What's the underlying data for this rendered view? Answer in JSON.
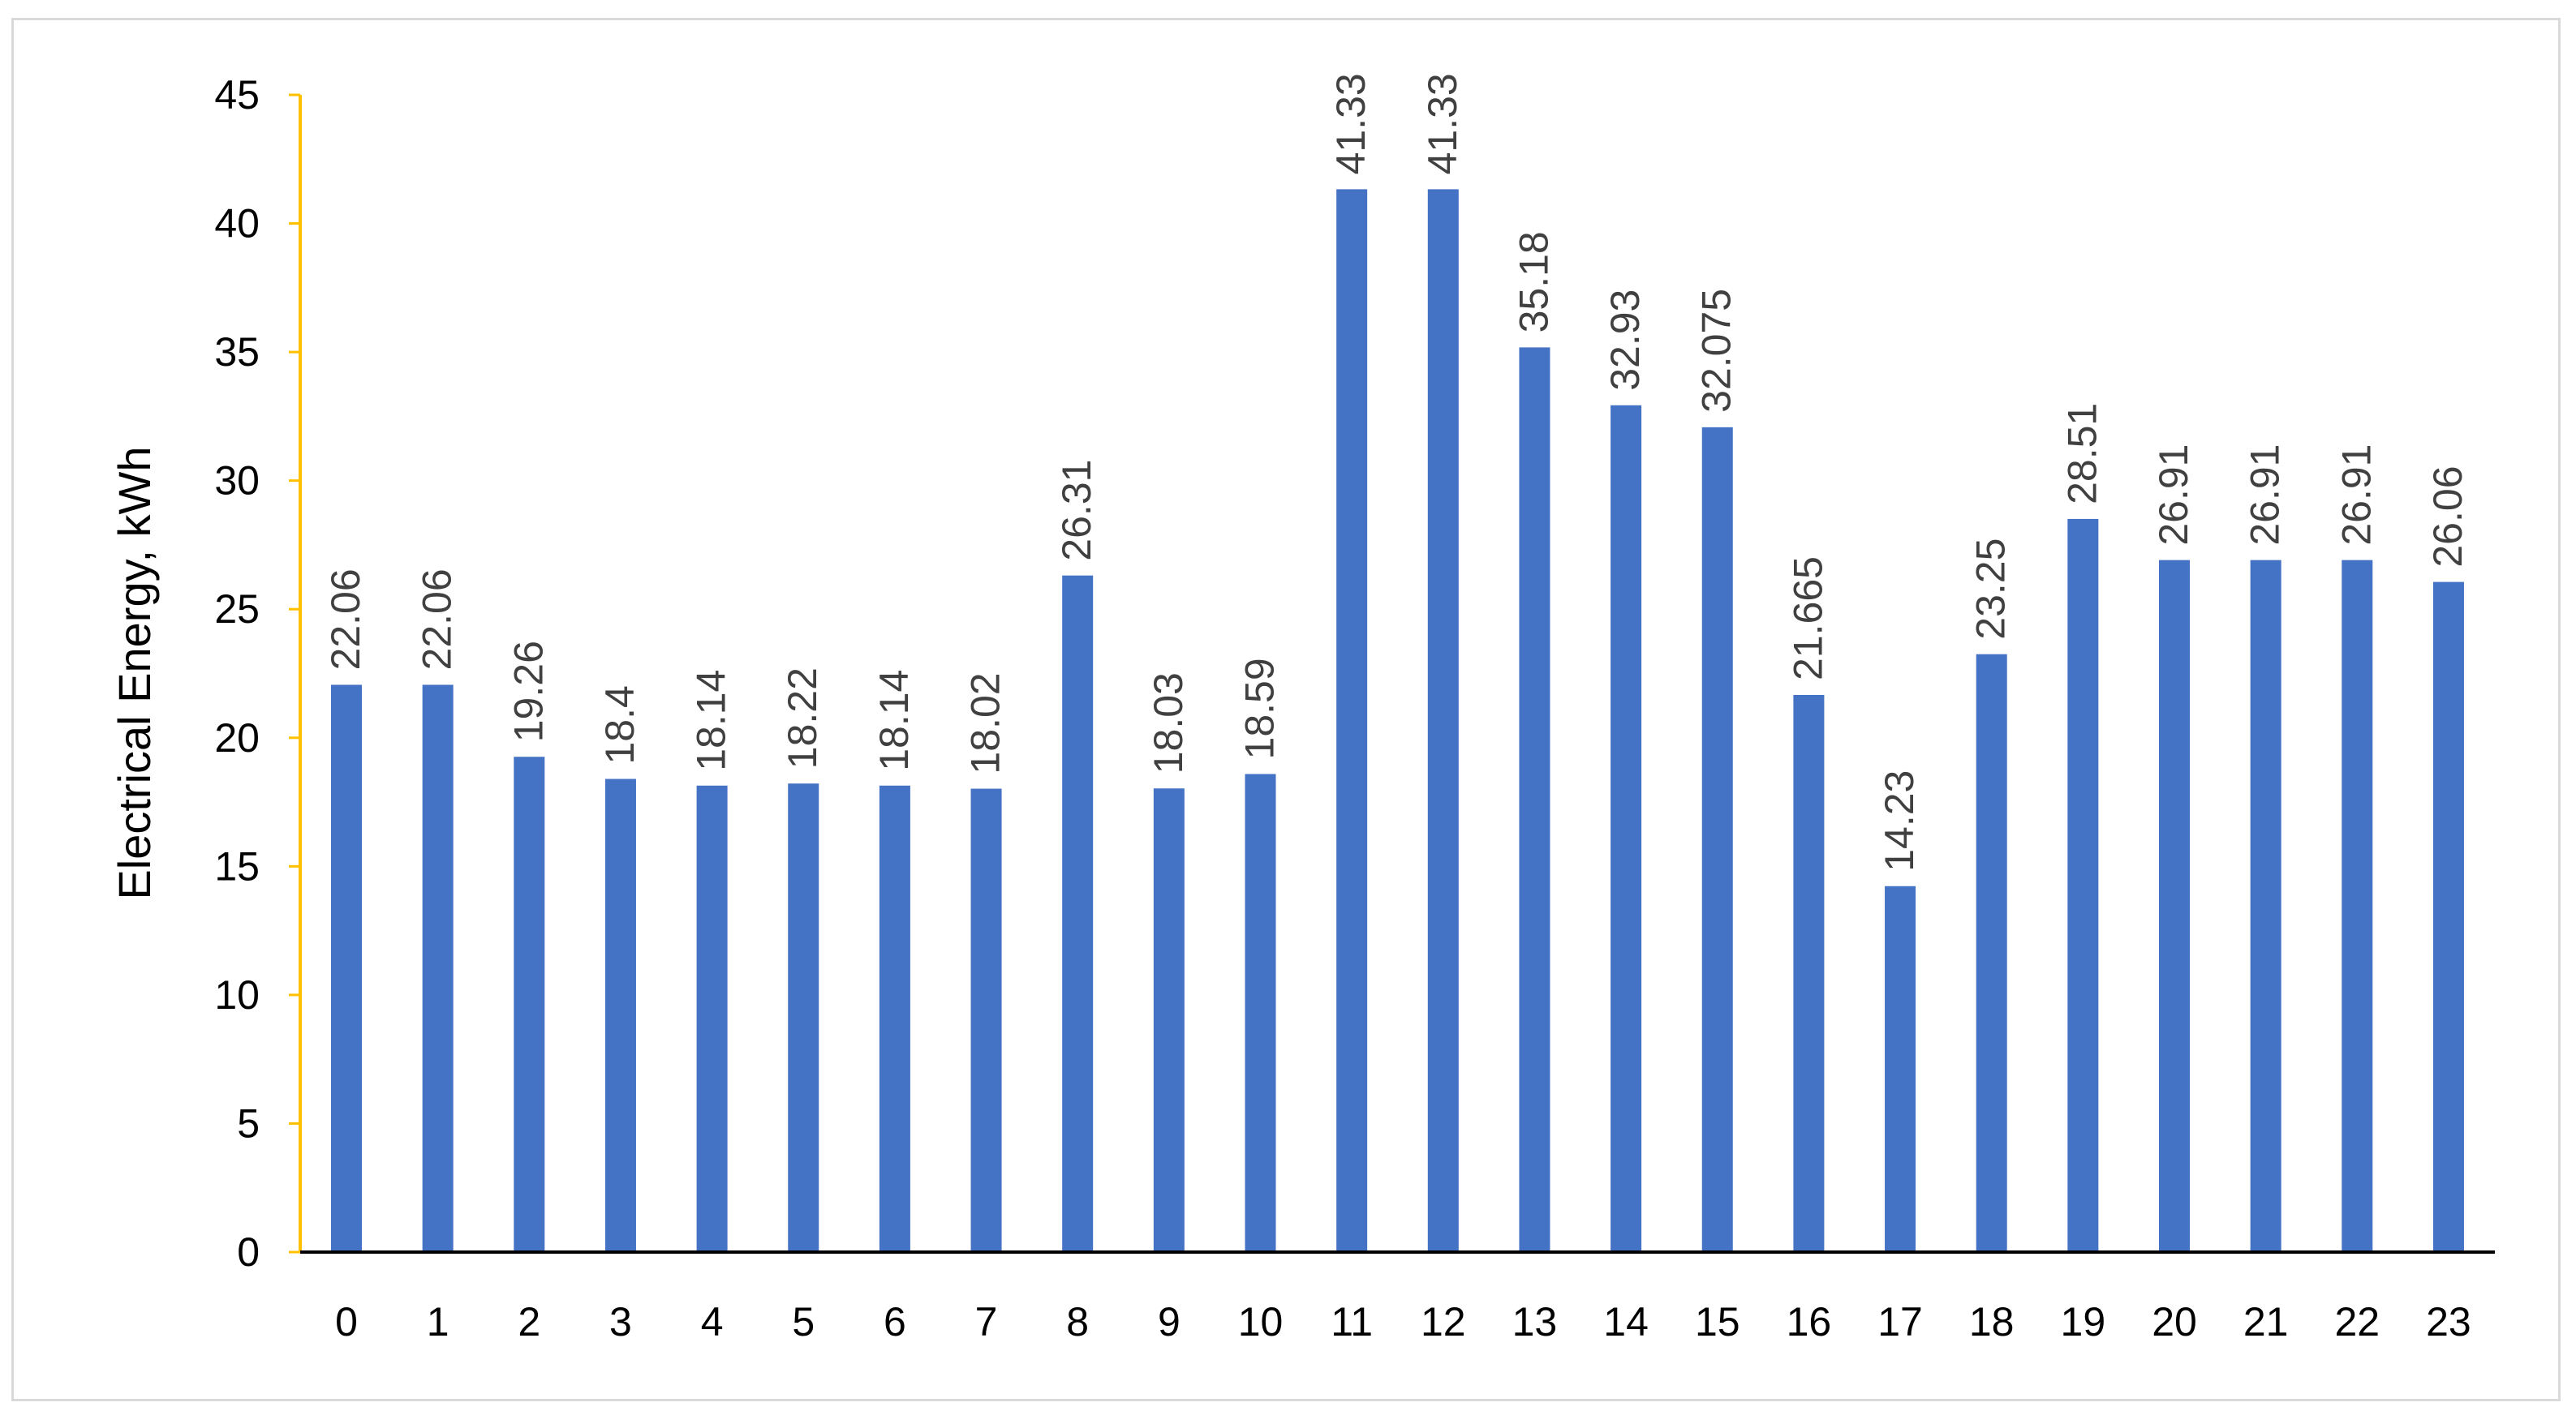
{
  "chart_data": {
    "type": "bar",
    "title": "",
    "xlabel": "",
    "ylabel": "Electrical Energy, kWh",
    "ylim": [
      0,
      45
    ],
    "yticks": [
      0,
      5,
      10,
      15,
      20,
      25,
      30,
      35,
      40,
      45
    ],
    "categories": [
      "0",
      "1",
      "2",
      "3",
      "4",
      "5",
      "6",
      "7",
      "8",
      "9",
      "10",
      "11",
      "12",
      "13",
      "14",
      "15",
      "16",
      "17",
      "18",
      "19",
      "20",
      "21",
      "22",
      "23"
    ],
    "values": [
      22.06,
      22.06,
      19.26,
      18.4,
      18.14,
      18.22,
      18.14,
      18.02,
      26.31,
      18.03,
      18.59,
      41.33,
      41.33,
      35.18,
      32.93,
      32.075,
      21.665,
      14.23,
      23.25,
      28.51,
      26.91,
      26.91,
      26.91,
      26.06
    ],
    "data_labels": [
      "22.06",
      "22.06",
      "19.26",
      "18.4",
      "18.14",
      "18.22",
      "18.14",
      "18.02",
      "26.31",
      "18.03",
      "18.59",
      "41.33",
      "41.33",
      "35.18",
      "32.93",
      "32.075",
      "21.665",
      "14.23",
      "23.25",
      "28.51",
      "26.91",
      "26.91",
      "26.91",
      "26.06"
    ],
    "grid": false,
    "legend": "none",
    "colors": {
      "bar": "#4472c4",
      "y_axis": "#ffc000",
      "x_axis": "#000000",
      "frame": "#d9d9d9"
    }
  }
}
